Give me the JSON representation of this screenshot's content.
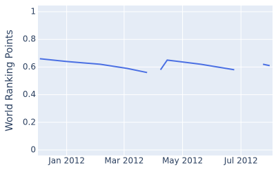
{
  "chart_data": {
    "type": "line",
    "y_label": "World Ranking Points",
    "x": [
      "2011-12-04",
      "2012-01-01",
      "2012-02-05",
      "2012-03-04",
      "2012-03-25",
      null,
      "2012-04-08",
      "2012-04-15",
      "2012-05-20",
      "2012-06-24",
      null,
      "2012-07-24",
      "2012-07-31"
    ],
    "series": [
      {
        "name": "World Ranking Points",
        "color": "#4a6fe3",
        "values": [
          0.66,
          0.64,
          0.62,
          0.59,
          0.56,
          null,
          0.58,
          0.65,
          0.62,
          0.58,
          null,
          0.62,
          0.61
        ]
      }
    ],
    "xlim": [
      "2011-12-02",
      "2012-08-03"
    ],
    "xticks": [
      {
        "value": "2012-01-01",
        "label": "Jan 2012"
      },
      {
        "value": "2012-03-01",
        "label": "Mar 2012"
      },
      {
        "value": "2012-05-01",
        "label": "May 2012"
      },
      {
        "value": "2012-07-01",
        "label": "Jul 2012"
      }
    ],
    "ylim": [
      0,
      1
    ],
    "yticks": [
      0,
      0.2,
      0.4,
      0.6,
      0.8,
      1
    ],
    "grid": true
  }
}
